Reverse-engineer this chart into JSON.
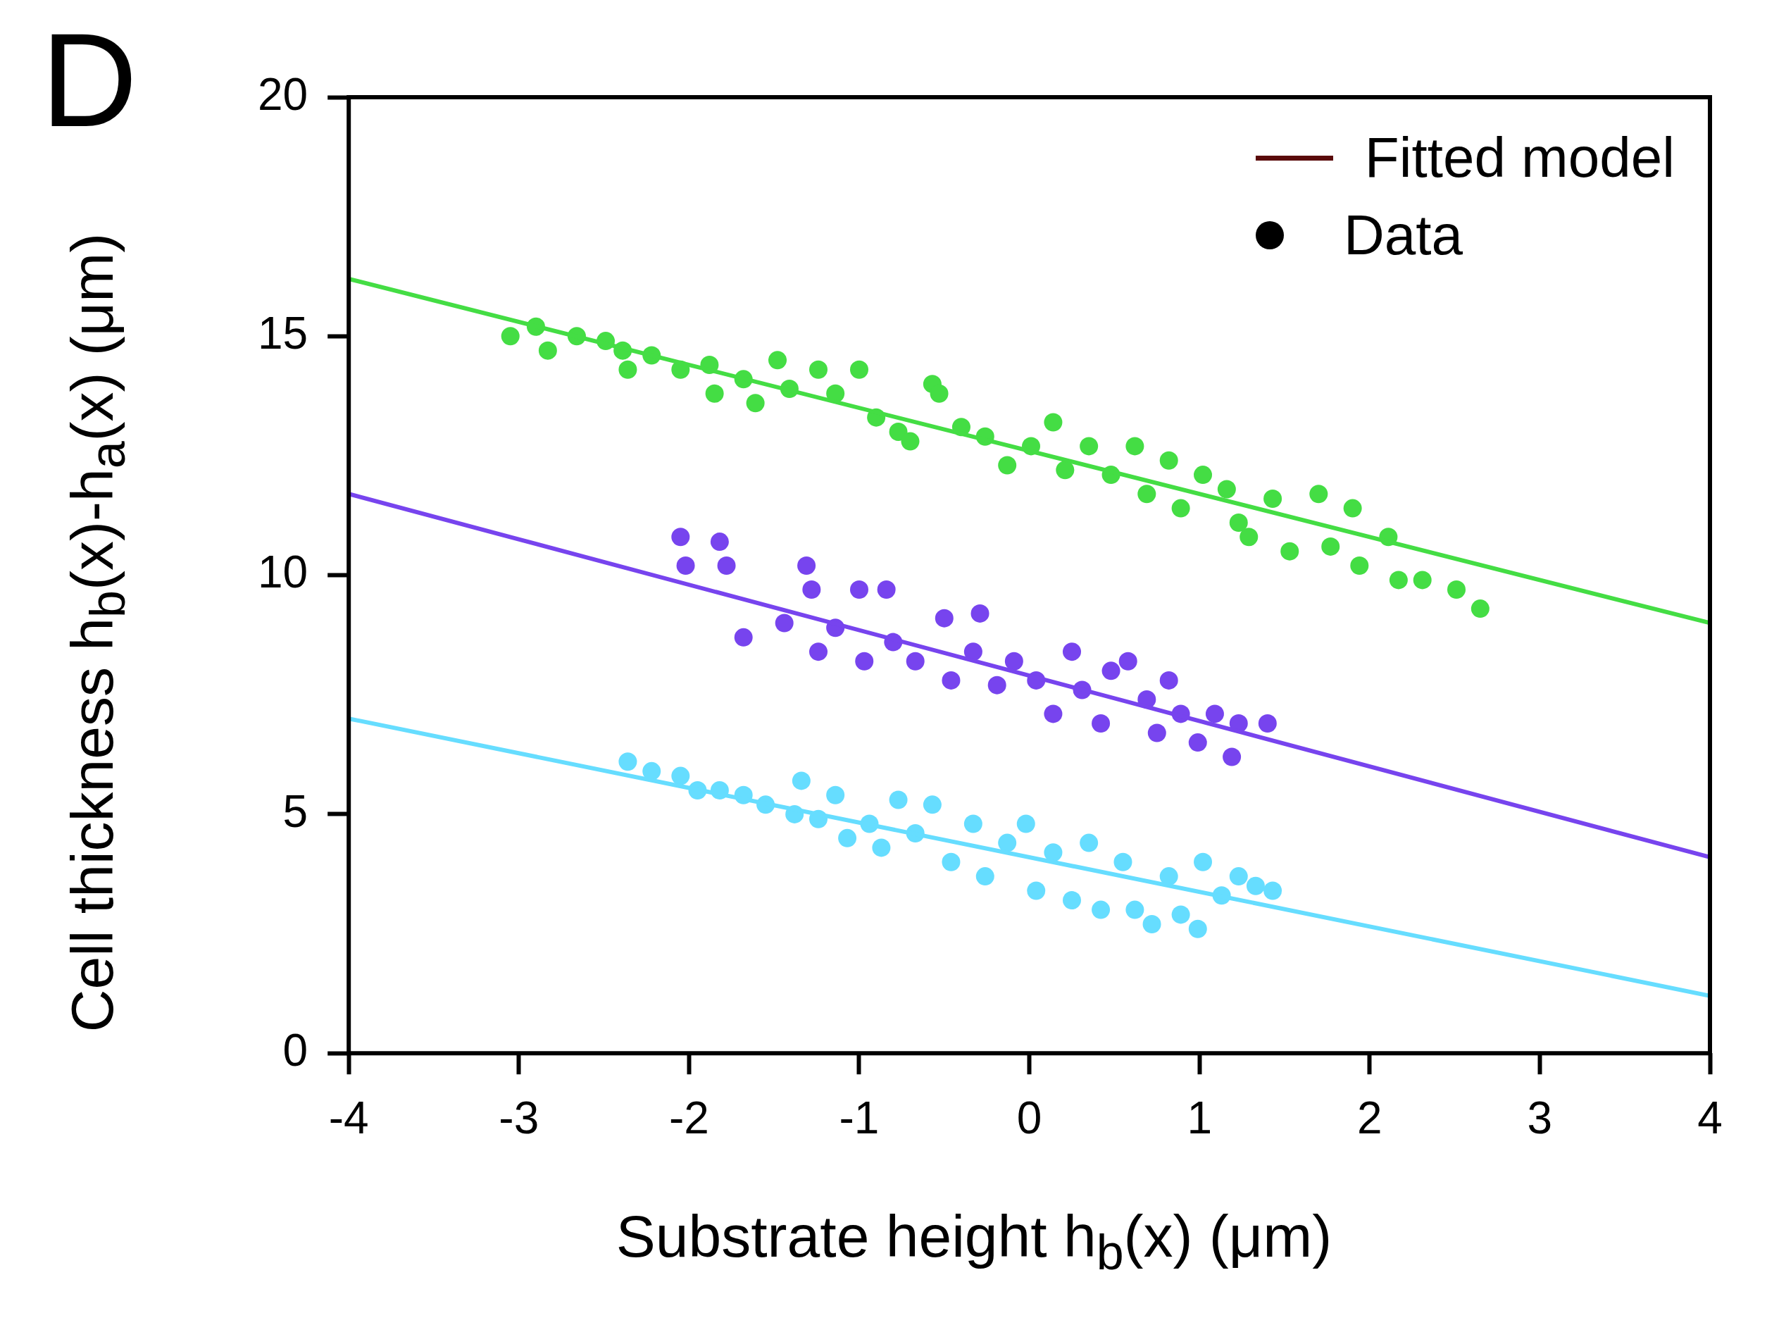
{
  "chart_data": {
    "type": "scatter",
    "xlabel": "Substrate height h$_{b}$(x) (μm)",
    "ylabel": "Cell thickness h$_{b}$(x)-h$_{a}$(x)  (μm)",
    "annotations": [
      "D",
      "Fitted model",
      "Data"
    ],
    "xlim": [
      -4,
      4
    ],
    "xticks": [
      -4,
      -3,
      -2,
      -1,
      0,
      1,
      2,
      3,
      4
    ],
    "ylim": [
      0,
      20
    ],
    "yticks": [
      0,
      5,
      10,
      15,
      20
    ],
    "grid": false,
    "marker": "circle",
    "line_style": "solid",
    "series": [
      {
        "type": "line",
        "marker": "none",
        "color": "#44dd44",
        "x": [
          -4,
          4
        ],
        "values": [
          16.2,
          9.0
        ]
      },
      {
        "type": "line",
        "marker": "none",
        "color": "#7744ee",
        "x": [
          -4,
          4
        ],
        "values": [
          11.7,
          4.1
        ]
      },
      {
        "type": "line",
        "marker": "none",
        "color": "#66ddff",
        "x": [
          -4,
          4
        ],
        "values": [
          7.0,
          1.2
        ]
      },
      {
        "type": "scatter",
        "color": "#44dd44",
        "x": [
          -3.05,
          -2.9,
          -2.83,
          -2.66,
          -2.49,
          -2.39,
          -2.36,
          -2.22,
          -2.05,
          -1.88,
          -1.85,
          -1.68,
          -1.61,
          -1.48,
          -1.41,
          -1.24,
          -1.14,
          -1.0,
          -0.9,
          -0.77,
          -0.7,
          -0.57,
          -0.53,
          -0.4,
          -0.26,
          -0.13,
          0.01,
          0.14,
          0.21,
          0.35,
          0.48,
          0.62,
          0.69,
          0.82,
          0.89,
          1.02,
          1.16,
          1.23,
          1.29,
          1.43,
          1.53,
          1.7,
          1.77,
          1.9,
          1.94,
          2.11,
          2.17,
          2.31,
          2.51,
          2.65
        ],
        "values": [
          15.0,
          15.2,
          14.7,
          15.0,
          14.9,
          14.7,
          14.3,
          14.6,
          14.3,
          14.4,
          13.8,
          14.1,
          13.6,
          14.5,
          13.9,
          14.3,
          13.8,
          14.3,
          13.3,
          13.0,
          12.8,
          14.0,
          13.8,
          13.1,
          12.9,
          12.3,
          12.7,
          13.2,
          12.2,
          12.7,
          12.1,
          12.7,
          11.7,
          12.4,
          11.4,
          12.1,
          11.8,
          11.1,
          10.8,
          11.6,
          10.5,
          11.7,
          10.6,
          11.4,
          10.2,
          10.8,
          9.9,
          9.9,
          9.7,
          9.3
        ]
      },
      {
        "type": "scatter",
        "color": "#7744ee",
        "x": [
          -2.05,
          -2.02,
          -1.82,
          -1.78,
          -1.68,
          -1.44,
          -1.31,
          -1.28,
          -1.24,
          -1.14,
          -1.0,
          -0.97,
          -0.84,
          -0.8,
          -0.67,
          -0.5,
          -0.46,
          -0.33,
          -0.29,
          -0.19,
          -0.09,
          0.04,
          0.14,
          0.25,
          0.31,
          0.42,
          0.48,
          0.58,
          0.69,
          0.75,
          0.82,
          0.89,
          0.99,
          1.09,
          1.19,
          1.23,
          1.4
        ],
        "values": [
          10.8,
          10.2,
          10.7,
          10.2,
          8.7,
          9.0,
          10.2,
          9.7,
          8.4,
          8.9,
          9.7,
          8.2,
          9.7,
          8.6,
          8.2,
          9.1,
          7.8,
          8.4,
          9.2,
          7.7,
          8.2,
          7.8,
          7.1,
          8.4,
          7.6,
          6.9,
          8.0,
          8.2,
          7.4,
          6.7,
          7.8,
          7.1,
          6.5,
          7.1,
          6.2,
          6.9,
          6.9
        ]
      },
      {
        "type": "scatter",
        "color": "#66ddff",
        "x": [
          -2.36,
          -2.22,
          -2.05,
          -1.95,
          -1.82,
          -1.68,
          -1.55,
          -1.38,
          -1.34,
          -1.24,
          -1.14,
          -1.07,
          -0.94,
          -0.87,
          -0.77,
          -0.67,
          -0.57,
          -0.46,
          -0.33,
          -0.26,
          -0.13,
          -0.02,
          0.04,
          0.14,
          0.25,
          0.35,
          0.42,
          0.55,
          0.62,
          0.72,
          0.82,
          0.89,
          0.99,
          1.02,
          1.13,
          1.23,
          1.33,
          1.43
        ],
        "values": [
          6.1,
          5.9,
          5.8,
          5.5,
          5.5,
          5.4,
          5.2,
          5.0,
          5.7,
          4.9,
          5.4,
          4.5,
          4.8,
          4.3,
          5.3,
          4.6,
          5.2,
          4.0,
          4.8,
          3.7,
          4.4,
          4.8,
          3.4,
          4.2,
          3.2,
          4.4,
          3.0,
          4.0,
          3.0,
          2.7,
          3.7,
          2.9,
          2.6,
          4.0,
          3.3,
          3.7,
          3.5,
          3.4
        ]
      }
    ]
  }
}
